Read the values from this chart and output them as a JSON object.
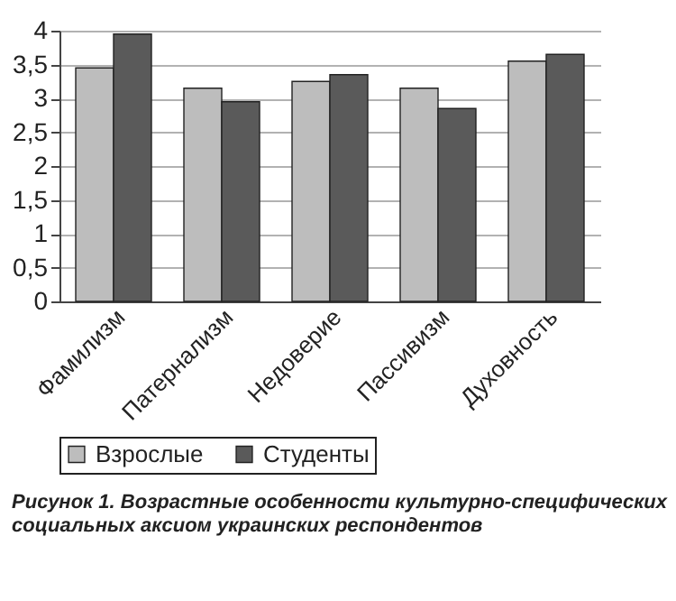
{
  "chart_data": {
    "type": "bar",
    "title": "Рисунок 1. Возрастные особенности культурно-специфических социальных аксиом украинских респондентов",
    "categories": [
      "Фамилизм",
      "Патернализм",
      "Недоверие",
      "Пассивизм",
      "Духовность"
    ],
    "series": [
      {
        "name": "Взрослые",
        "color": "#bdbdbd",
        "values": [
          3.45,
          3.15,
          3.25,
          3.15,
          3.55
        ]
      },
      {
        "name": "Студенты",
        "color": "#5a5a5a",
        "values": [
          3.95,
          2.95,
          3.35,
          2.85,
          3.65
        ]
      }
    ],
    "ylim": [
      0,
      4
    ],
    "yticks": [
      {
        "value": 0,
        "label": "0"
      },
      {
        "value": 0.5,
        "label": "0,5"
      },
      {
        "value": 1,
        "label": "1"
      },
      {
        "value": 1.5,
        "label": "1,5"
      },
      {
        "value": 2,
        "label": "2"
      },
      {
        "value": 2.5,
        "label": "2,5"
      },
      {
        "value": 3,
        "label": "3"
      },
      {
        "value": 3.5,
        "label": "3,5"
      },
      {
        "value": 4,
        "label": "4"
      }
    ],
    "grid": "y",
    "legend": "bottom"
  }
}
